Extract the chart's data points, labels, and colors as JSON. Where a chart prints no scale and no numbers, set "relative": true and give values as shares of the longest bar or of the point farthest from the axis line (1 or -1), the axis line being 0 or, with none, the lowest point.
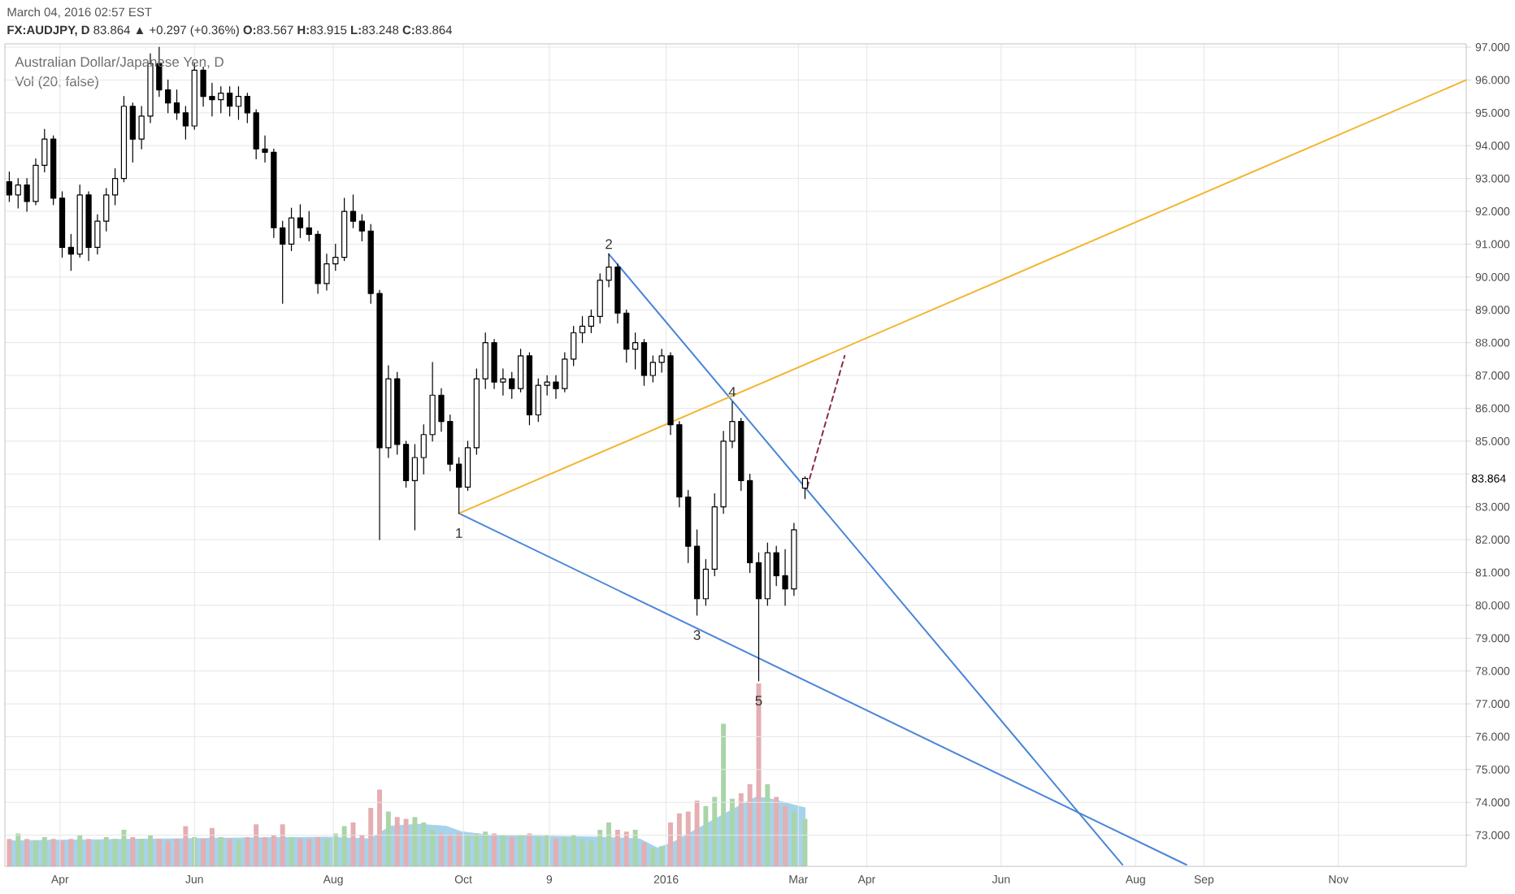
{
  "chart_data": [
    {
      "type": "candlestick",
      "title": "Australian Dollar/Japanese Yen, D",
      "subtitle": "**FX:AUDJPY, D** 83.864 ▲ +0.297 (+0.36%) **O:**83.567 **H:**83.915 **L:**83.248 **C:**83.864",
      "color": "#000000",
      "x": [
        "2015-03-09",
        "2015-03-13",
        "2015-03-17",
        "2015-03-21",
        "2015-03-25",
        "2015-03-29",
        "2015-04-02",
        "2015-04-06",
        "2015-04-10",
        "2015-04-14",
        "2015-04-18",
        "2015-04-22",
        "2015-04-26",
        "2015-04-30",
        "2015-05-04",
        "2015-05-08",
        "2015-05-12",
        "2015-05-16",
        "2015-05-20",
        "2015-05-24",
        "2015-05-28",
        "2015-06-01",
        "2015-06-05",
        "2015-06-09",
        "2015-06-13",
        "2015-06-17",
        "2015-06-21",
        "2015-06-25",
        "2015-06-29",
        "2015-07-03",
        "2015-07-07",
        "2015-07-11",
        "2015-07-15",
        "2015-07-19",
        "2015-07-23",
        "2015-07-27",
        "2015-07-31",
        "2015-08-04",
        "2015-08-08",
        "2015-08-12",
        "2015-08-16",
        "2015-08-20",
        "2015-08-24",
        "2015-08-28",
        "2015-09-01",
        "2015-09-05",
        "2015-09-09",
        "2015-09-13",
        "2015-09-17",
        "2015-09-21",
        "2015-09-25",
        "2015-09-29",
        "2015-10-03",
        "2015-10-07",
        "2015-10-11",
        "2015-10-15",
        "2015-10-19",
        "2015-10-23",
        "2015-10-27",
        "2015-10-31",
        "2015-11-04",
        "2015-11-08",
        "2015-11-12",
        "2015-11-16",
        "2015-11-20",
        "2015-11-24",
        "2015-11-28",
        "2015-12-02",
        "2015-12-06",
        "2015-12-10",
        "2015-12-14",
        "2015-12-18",
        "2015-12-22",
        "2015-12-26",
        "2015-12-30",
        "2016-01-03",
        "2016-01-07",
        "2016-01-11",
        "2016-01-15",
        "2016-01-19",
        "2016-01-23",
        "2016-01-27",
        "2016-01-31",
        "2016-02-04",
        "2016-02-08",
        "2016-02-12",
        "2016-02-16",
        "2016-02-20",
        "2016-02-24",
        "2016-02-28",
        "2016-03-04"
      ],
      "ohlc": [
        [
          92.9,
          93.2,
          92.3,
          92.5
        ],
        [
          92.5,
          93.0,
          92.1,
          92.8
        ],
        [
          92.8,
          93.0,
          92.0,
          92.3
        ],
        [
          92.3,
          93.6,
          92.2,
          93.4
        ],
        [
          93.4,
          94.5,
          93.2,
          94.2
        ],
        [
          94.2,
          94.3,
          92.2,
          92.4
        ],
        [
          92.4,
          92.6,
          90.6,
          90.9
        ],
        [
          90.9,
          91.3,
          90.2,
          90.7
        ],
        [
          90.7,
          92.8,
          90.6,
          92.5
        ],
        [
          92.5,
          92.6,
          90.5,
          90.9
        ],
        [
          90.9,
          91.9,
          90.7,
          91.7
        ],
        [
          91.7,
          92.7,
          91.4,
          92.5
        ],
        [
          92.5,
          93.3,
          92.2,
          93.0
        ],
        [
          93.0,
          95.5,
          92.9,
          95.2
        ],
        [
          95.2,
          95.3,
          93.5,
          94.2
        ],
        [
          94.2,
          95.2,
          93.9,
          94.9
        ],
        [
          94.9,
          96.8,
          94.7,
          96.5
        ],
        [
          96.5,
          97.0,
          95.5,
          95.7
        ],
        [
          95.7,
          96.0,
          95.0,
          95.3
        ],
        [
          95.3,
          95.7,
          94.8,
          95.0
        ],
        [
          95.0,
          95.2,
          94.2,
          94.6
        ],
        [
          94.6,
          96.5,
          94.5,
          96.3
        ],
        [
          96.3,
          96.4,
          95.2,
          95.5
        ],
        [
          95.5,
          95.9,
          94.9,
          95.4
        ],
        [
          95.4,
          95.8,
          95.0,
          95.6
        ],
        [
          95.6,
          95.8,
          94.9,
          95.2
        ],
        [
          95.2,
          95.8,
          94.8,
          95.5
        ],
        [
          95.5,
          95.6,
          94.7,
          95.0
        ],
        [
          95.0,
          95.1,
          93.6,
          93.9
        ],
        [
          93.9,
          94.3,
          93.5,
          93.8
        ],
        [
          93.8,
          93.9,
          91.2,
          91.5
        ],
        [
          91.5,
          91.7,
          89.2,
          91.0
        ],
        [
          91.0,
          92.1,
          90.8,
          91.8
        ],
        [
          91.8,
          92.2,
          91.2,
          91.5
        ],
        [
          91.5,
          92.0,
          91.1,
          91.3
        ],
        [
          91.3,
          91.4,
          89.5,
          89.8
        ],
        [
          89.8,
          90.7,
          89.6,
          90.4
        ],
        [
          90.4,
          91.0,
          90.2,
          90.6
        ],
        [
          90.6,
          92.4,
          90.5,
          92.0
        ],
        [
          92.0,
          92.5,
          91.5,
          91.7
        ],
        [
          91.7,
          91.9,
          91.1,
          91.4
        ],
        [
          91.4,
          91.6,
          89.2,
          89.5
        ],
        [
          89.5,
          89.6,
          82.0,
          84.8
        ],
        [
          84.8,
          87.3,
          84.5,
          86.9
        ],
        [
          86.9,
          87.1,
          84.6,
          84.9
        ],
        [
          84.9,
          85.0,
          83.6,
          83.8
        ],
        [
          83.8,
          84.9,
          82.3,
          84.5
        ],
        [
          84.5,
          85.5,
          84.0,
          85.2
        ],
        [
          85.2,
          87.4,
          85.0,
          86.4
        ],
        [
          86.4,
          86.6,
          85.3,
          85.6
        ],
        [
          85.6,
          85.8,
          84.1,
          84.3
        ],
        [
          84.3,
          84.5,
          82.8,
          83.6
        ],
        [
          83.6,
          85.0,
          83.5,
          84.8
        ],
        [
          84.8,
          87.2,
          84.6,
          86.9
        ],
        [
          86.9,
          88.3,
          86.6,
          88.0
        ],
        [
          88.0,
          88.1,
          86.6,
          86.8
        ],
        [
          86.8,
          87.2,
          86.4,
          86.9
        ],
        [
          86.9,
          87.1,
          86.3,
          86.6
        ],
        [
          86.6,
          87.8,
          86.5,
          87.6
        ],
        [
          87.6,
          87.7,
          85.5,
          85.8
        ],
        [
          85.8,
          86.9,
          85.6,
          86.7
        ],
        [
          86.7,
          87.0,
          86.4,
          86.8
        ],
        [
          86.8,
          87.0,
          86.3,
          86.6
        ],
        [
          86.6,
          87.7,
          86.5,
          87.5
        ],
        [
          87.5,
          88.5,
          87.3,
          88.3
        ],
        [
          88.3,
          88.8,
          88.0,
          88.5
        ],
        [
          88.5,
          89.0,
          88.3,
          88.8
        ],
        [
          88.8,
          90.1,
          88.6,
          89.9
        ],
        [
          89.9,
          90.7,
          89.7,
          90.3
        ],
        [
          90.3,
          90.4,
          88.6,
          88.9
        ],
        [
          88.9,
          89.0,
          87.4,
          87.8
        ],
        [
          87.8,
          88.3,
          87.2,
          88.0
        ],
        [
          88.0,
          88.1,
          86.7,
          87.0
        ],
        [
          87.0,
          87.6,
          86.8,
          87.4
        ],
        [
          87.4,
          87.8,
          87.1,
          87.6
        ],
        [
          87.6,
          87.7,
          85.2,
          85.5
        ],
        [
          85.5,
          85.6,
          83.0,
          83.3
        ],
        [
          83.3,
          83.5,
          81.3,
          81.8
        ],
        [
          81.8,
          82.3,
          79.7,
          80.2
        ],
        [
          80.2,
          81.4,
          80.0,
          81.1
        ],
        [
          81.1,
          83.4,
          80.9,
          83.0
        ],
        [
          83.0,
          85.3,
          82.8,
          85.0
        ],
        [
          85.0,
          86.2,
          84.8,
          85.6
        ],
        [
          85.6,
          85.7,
          83.5,
          83.8
        ],
        [
          83.8,
          84.0,
          81.0,
          81.3
        ],
        [
          81.3,
          81.6,
          77.7,
          80.2
        ],
        [
          80.2,
          81.9,
          80.0,
          81.6
        ],
        [
          81.6,
          81.8,
          80.6,
          80.9
        ],
        [
          80.9,
          81.7,
          80.0,
          80.5
        ],
        [
          80.5,
          82.5,
          80.3,
          82.3
        ],
        [
          83.567,
          83.915,
          83.248,
          83.864
        ]
      ],
      "series": [
        {
          "type": "line",
          "color": "#4a86d8",
          "x": [
            "2015-09-29",
            "2016-08-24"
          ],
          "values": [
            82.8,
            72.1
          ]
        },
        {
          "type": "line",
          "color": "#4a86d8",
          "x": [
            "2015-12-06",
            "2016-07-26"
          ],
          "values": [
            90.7,
            72.1
          ]
        },
        {
          "type": "line",
          "color": "#f2b632",
          "x": [
            "2015-09-29",
            "2016-12-29"
          ],
          "values": [
            82.8,
            96.0
          ]
        },
        {
          "type": "line",
          "color": "#8b2a50",
          "line_style": "dashed",
          "x": [
            "2016-03-05",
            "2016-03-22"
          ],
          "values": [
            83.6,
            87.6
          ]
        }
      ],
      "xlim": [
        "2015-03-07",
        "2016-12-29"
      ],
      "ylim": [
        72.05,
        97.1
      ],
      "xticks": [
        {
          "value": "2015-04-01",
          "label": "Apr"
        },
        {
          "value": "2015-06-01",
          "label": "Jun"
        },
        {
          "value": "2015-08-03",
          "label": "Aug"
        },
        {
          "value": "2015-10-01",
          "label": "Oct"
        },
        {
          "value": "2015-11-09",
          "label": "9"
        },
        {
          "value": "2016-01-01",
          "label": "2016"
        },
        {
          "value": "2016-03-01",
          "label": "Mar"
        },
        {
          "value": "2016-04-01",
          "label": "Apr"
        },
        {
          "value": "2016-06-01",
          "label": "Jun"
        },
        {
          "value": "2016-08-01",
          "label": "Aug"
        },
        {
          "value": "2016-09-01",
          "label": "Sep"
        },
        {
          "value": "2016-11-01",
          "label": "Nov"
        }
      ],
      "yticks": [
        {
          "value": 73,
          "label": "73.000"
        },
        {
          "value": 74,
          "label": "74.000"
        },
        {
          "value": 75,
          "label": "75.000"
        },
        {
          "value": 76,
          "label": "76.000"
        },
        {
          "value": 77,
          "label": "77.000"
        },
        {
          "value": 78,
          "label": "78.000"
        },
        {
          "value": 79,
          "label": "79.000"
        },
        {
          "value": 80,
          "label": "80.000"
        },
        {
          "value": 81,
          "label": "81.000"
        },
        {
          "value": 82,
          "label": "82.000"
        },
        {
          "value": 83,
          "label": "83.000"
        },
        {
          "value": 84,
          "label": null
        },
        {
          "value": 85,
          "label": "85.000"
        },
        {
          "value": 86,
          "label": "86.000"
        },
        {
          "value": 87,
          "label": "87.000"
        },
        {
          "value": 88,
          "label": "88.000"
        },
        {
          "value": 89,
          "label": "89.000"
        },
        {
          "value": 90,
          "label": "90.000"
        },
        {
          "value": 91,
          "label": "91.000"
        },
        {
          "value": 92,
          "label": "92.000"
        },
        {
          "value": 93,
          "label": "93.000"
        },
        {
          "value": 94,
          "label": "94.000"
        },
        {
          "value": 95,
          "label": "95.000"
        },
        {
          "value": 96,
          "label": "96.000"
        },
        {
          "value": 97,
          "label": "97.000"
        }
      ],
      "grid": true,
      "annotations": [
        "March 04, 2016 02:57 EST",
        "83.864",
        {
          "text": "1",
          "x": "2015-09-29",
          "y": 82.8
        },
        {
          "text": "2",
          "x": "2015-12-06",
          "y": 90.7
        },
        {
          "text": "3",
          "x": "2016-01-15",
          "y": 79.7
        },
        {
          "text": "4",
          "x": "2016-01-31",
          "y": 86.2
        },
        {
          "text": "5",
          "x": "2016-02-12",
          "y": 77.7
        }
      ]
    },
    {
      "type": "bar",
      "title": "Vol (20, false)",
      "relative": true,
      "tick_labels": false,
      "xlim": [
        "2015-03-07",
        "2016-12-29"
      ],
      "x": [
        "2015-03-09",
        "2015-03-13",
        "2015-03-17",
        "2015-03-21",
        "2015-03-25",
        "2015-03-29",
        "2015-04-02",
        "2015-04-06",
        "2015-04-10",
        "2015-04-14",
        "2015-04-18",
        "2015-04-22",
        "2015-04-26",
        "2015-04-30",
        "2015-05-04",
        "2015-05-08",
        "2015-05-12",
        "2015-05-16",
        "2015-05-20",
        "2015-05-24",
        "2015-05-28",
        "2015-06-01",
        "2015-06-05",
        "2015-06-09",
        "2015-06-13",
        "2015-06-17",
        "2015-06-21",
        "2015-06-25",
        "2015-06-29",
        "2015-07-03",
        "2015-07-07",
        "2015-07-11",
        "2015-07-15",
        "2015-07-19",
        "2015-07-23",
        "2015-07-27",
        "2015-07-31",
        "2015-08-04",
        "2015-08-08",
        "2015-08-12",
        "2015-08-16",
        "2015-08-20",
        "2015-08-24",
        "2015-08-28",
        "2015-09-01",
        "2015-09-05",
        "2015-09-09",
        "2015-09-13",
        "2015-09-17",
        "2015-09-21",
        "2015-09-25",
        "2015-09-29",
        "2015-10-03",
        "2015-10-07",
        "2015-10-11",
        "2015-10-15",
        "2015-10-19",
        "2015-10-23",
        "2015-10-27",
        "2015-10-31",
        "2015-11-04",
        "2015-11-08",
        "2015-11-12",
        "2015-11-16",
        "2015-11-20",
        "2015-11-24",
        "2015-11-28",
        "2015-12-02",
        "2015-12-06",
        "2015-12-10",
        "2015-12-14",
        "2015-12-18",
        "2015-12-22",
        "2015-12-26",
        "2015-12-30",
        "2016-01-03",
        "2016-01-07",
        "2016-01-11",
        "2016-01-15",
        "2016-01-19",
        "2016-01-23",
        "2016-01-27",
        "2016-01-31",
        "2016-02-04",
        "2016-02-08",
        "2016-02-12",
        "2016-02-16",
        "2016-02-20",
        "2016-02-24",
        "2016-02-28",
        "2016-03-04"
      ],
      "series": [
        {
          "type": "area",
          "color": "#a6d3ea",
          "x": [
            "2015-03-09",
            "2015-05-18",
            "2015-07-31",
            "2015-08-20",
            "2015-08-29",
            "2015-09-11",
            "2015-09-23",
            "2015-09-30",
            "2015-10-13",
            "2015-12-01",
            "2015-12-20",
            "2015-12-28",
            "2016-01-04",
            "2016-01-19",
            "2016-01-31",
            "2016-02-11",
            "2016-02-17",
            "2016-03-04"
          ],
          "values": [
            0.14,
            0.15,
            0.16,
            0.15,
            0.22,
            0.23,
            0.22,
            0.19,
            0.17,
            0.16,
            0.15,
            0.1,
            0.13,
            0.23,
            0.31,
            0.38,
            0.37,
            0.32
          ]
        },
        {
          "values": [
            0.15,
            0.18,
            0.15,
            0.14,
            0.16,
            0.15,
            0.14,
            0.15,
            0.17,
            0.15,
            0.14,
            0.16,
            0.15,
            0.2,
            0.16,
            0.15,
            0.17,
            0.15,
            0.14,
            0.15,
            0.22,
            0.16,
            0.15,
            0.21,
            0.16,
            0.15,
            0.14,
            0.16,
            0.23,
            0.16,
            0.17,
            0.23,
            0.16,
            0.15,
            0.15,
            0.16,
            0.15,
            0.18,
            0.22,
            0.24,
            0.17,
            0.32,
            0.42,
            0.3,
            0.27,
            0.26,
            0.27,
            0.24,
            0.2,
            0.18,
            0.17,
            0.18,
            0.17,
            0.18,
            0.19,
            0.18,
            0.17,
            0.16,
            0.17,
            0.18,
            0.16,
            0.17,
            0.15,
            0.16,
            0.17,
            0.15,
            0.14,
            0.2,
            0.24,
            0.2,
            0.19,
            0.2,
            0.13,
            0.1,
            0.11,
            0.24,
            0.29,
            0.3,
            0.36,
            0.33,
            0.38,
            0.78,
            0.37,
            0.4,
            0.45,
            1,
            0.45,
            0.38,
            0.33,
            0.3,
            0.26
          ],
          "colors": [
            "#e4aeb3",
            "#a9d5a9",
            "#e4aeb3",
            "#a9d5a9",
            "#a9d5a9",
            "#e4aeb3",
            "#e4aeb3",
            "#e4aeb3",
            "#a9d5a9",
            "#e4aeb3",
            "#a9d5a9",
            "#a9d5a9",
            "#a9d5a9",
            "#a9d5a9",
            "#e4aeb3",
            "#a9d5a9",
            "#a9d5a9",
            "#e4aeb3",
            "#e4aeb3",
            "#e4aeb3",
            "#e4aeb3",
            "#a9d5a9",
            "#e4aeb3",
            "#e4aeb3",
            "#a9d5a9",
            "#e4aeb3",
            "#a9d5a9",
            "#e4aeb3",
            "#e4aeb3",
            "#e4aeb3",
            "#e4aeb3",
            "#e4aeb3",
            "#a9d5a9",
            "#e4aeb3",
            "#e4aeb3",
            "#e4aeb3",
            "#a9d5a9",
            "#a9d5a9",
            "#a9d5a9",
            "#e4aeb3",
            "#e4aeb3",
            "#e4aeb3",
            "#e4aeb3",
            "#a9d5a9",
            "#e4aeb3",
            "#e4aeb3",
            "#a9d5a9",
            "#a9d5a9",
            "#a9d5a9",
            "#e4aeb3",
            "#e4aeb3",
            "#e4aeb3",
            "#a9d5a9",
            "#a9d5a9",
            "#a9d5a9",
            "#e4aeb3",
            "#a9d5a9",
            "#e4aeb3",
            "#a9d5a9",
            "#e4aeb3",
            "#a9d5a9",
            "#a9d5a9",
            "#e4aeb3",
            "#a9d5a9",
            "#a9d5a9",
            "#a9d5a9",
            "#a9d5a9",
            "#a9d5a9",
            "#a9d5a9",
            "#e4aeb3",
            "#e4aeb3",
            "#a9d5a9",
            "#e4aeb3",
            "#a9d5a9",
            "#a9d5a9",
            "#e4aeb3",
            "#e4aeb3",
            "#e4aeb3",
            "#e4aeb3",
            "#a9d5a9",
            "#a9d5a9",
            "#a9d5a9",
            "#a9d5a9",
            "#e4aeb3",
            "#e4aeb3",
            "#e4aeb3",
            "#a9d5a9",
            "#e4aeb3",
            "#e4aeb3",
            "#a9d5a9",
            "#a9d5a9"
          ]
        }
      ]
    }
  ]
}
